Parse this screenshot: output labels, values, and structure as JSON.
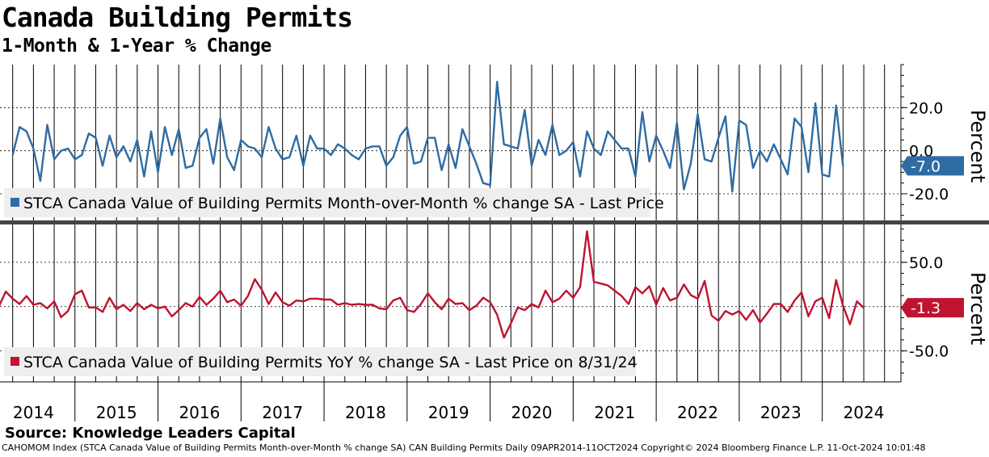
{
  "title": "Canada Building Permits",
  "subtitle": "1-Month & 1-Year % Change",
  "source": "Source: Knowledge Leaders Capital",
  "footer": "CAHOMOM Index (STCA Canada Value of Building Permits Month-over-Month % change SA) CAN Building Permits  Daily 09APR2014-11OCT2024 Copyright© 2024 Bloomberg Finance L.P. 11-Oct-2024 10:01:48",
  "chart_data": [
    {
      "type": "line",
      "name": "mom",
      "legend": "STCA Canada Value of Building Permits Month-over-Month % change SA - Last Price",
      "ylabel": "Percent",
      "ylim": [
        -32,
        40
      ],
      "yticks": [
        20.0,
        0.0,
        -20.0
      ],
      "ytick_labels": [
        "20.0",
        "0.0",
        "-20.0"
      ],
      "last_value_label": "-7.0",
      "color": "#2e6ca4",
      "start_year": 2014.25,
      "step_years": 0.0833333,
      "values": [
        -2.0,
        11.0,
        9.0,
        1.0,
        -14.0,
        12.0,
        -4.0,
        0.0,
        1.0,
        -4.0,
        -2.0,
        8.0,
        6.0,
        -7.0,
        7.0,
        -3.0,
        2.0,
        -5.0,
        5.0,
        -12.0,
        9.0,
        -10.0,
        11.0,
        -2.0,
        10.0,
        -8.0,
        -7.0,
        6.0,
        10.0,
        -6.0,
        15.0,
        -3.0,
        -9.0,
        5.0,
        2.0,
        1.0,
        -3.0,
        11.0,
        1.0,
        -4.0,
        -3.0,
        7.0,
        -7.0,
        7.0,
        1.0,
        1.0,
        -2.0,
        3.0,
        1.0,
        -2.0,
        -4.0,
        1.0,
        2.0,
        2.0,
        -7.0,
        -3.0,
        7.0,
        11.0,
        -6.0,
        -5.0,
        6.0,
        6.0,
        -9.0,
        3.0,
        -8.0,
        10.0,
        2.0,
        -6.0,
        -15.0,
        -16.0,
        32.0,
        3.0,
        2.0,
        1.0,
        19.0,
        -7.0,
        5.0,
        -2.0,
        12.0,
        -2.0,
        0.0,
        4.0,
        -12.0,
        9.0,
        1.0,
        -2.0,
        9.0,
        5.0,
        1.0,
        1.0,
        -12.0,
        18.0,
        -5.0,
        7.0,
        0.0,
        -8.0,
        13.0,
        -18.0,
        -6.0,
        17.0,
        -4.0,
        -5.0,
        6.0,
        16.0,
        -19.0,
        14.0,
        12.0,
        -8.0,
        0.0,
        -5.0,
        3.0,
        -4.0,
        -11.0,
        15.0,
        11.0,
        -10.0,
        22.0,
        -11.0,
        -12.0,
        21.0,
        -7.0
      ]
    },
    {
      "type": "line",
      "name": "yoy",
      "legend": "STCA Canada Value of Building Permits YoY % change SA - Last Price on 8/31/24",
      "ylabel": "Percent",
      "ylim": [
        -85,
        90
      ],
      "yticks": [
        50.0,
        0.0,
        -50.0
      ],
      "ytick_labels": [
        "50.0",
        "0.0",
        "-50.0"
      ],
      "last_value_label": "-1.3",
      "color": "#c0132f",
      "start_year": 2014.0,
      "step_years": 0.0833333,
      "values": [
        -8.0,
        0.0,
        17.0,
        9.0,
        3.0,
        12.0,
        2.0,
        4.0,
        -2.0,
        6.0,
        -12.0,
        -5.0,
        14.0,
        18.0,
        -1.0,
        -1.0,
        -6.0,
        10.0,
        -3.0,
        2.0,
        -5.0,
        4.0,
        -3.0,
        2.0,
        -2.0,
        0.0,
        -11.0,
        -4.0,
        4.0,
        0.0,
        11.0,
        2.0,
        9.0,
        18.0,
        5.0,
        8.0,
        1.0,
        12.0,
        31.0,
        19.0,
        3.0,
        16.0,
        5.0,
        1.0,
        7.0,
        6.0,
        9.0,
        9.0,
        8.0,
        8.0,
        2.0,
        4.0,
        2.0,
        3.0,
        2.0,
        2.0,
        -2.0,
        -3.0,
        7.0,
        10.0,
        -4.0,
        -6.0,
        3.0,
        15.0,
        5.0,
        -3.0,
        9.0,
        3.0,
        4.0,
        -4.0,
        1.0,
        10.0,
        5.0,
        -9.0,
        -35.0,
        -19.0,
        -1.0,
        -4.0,
        3.0,
        -1.0,
        18.0,
        5.0,
        9.0,
        18.0,
        10.0,
        22.0,
        85.0,
        28.0,
        26.0,
        24.0,
        18.0,
        12.0,
        3.0,
        22.0,
        15.0,
        23.0,
        2.0,
        21.0,
        7.0,
        10.0,
        25.0,
        13.0,
        9.0,
        29.0,
        -10.0,
        -16.0,
        -5.0,
        -9.0,
        -5.0,
        -15.0,
        -4.0,
        -18.0,
        -8.0,
        3.0,
        3.0,
        -6.0,
        7.0,
        16.0,
        -11.0,
        6.0,
        10.0,
        -13.0,
        30.0,
        1.0,
        -20.0,
        6.0,
        -1.3
      ]
    }
  ],
  "x_axis": {
    "years": [
      "2014",
      "2015",
      "2016",
      "2017",
      "2018",
      "2019",
      "2020",
      "2021",
      "2022",
      "2023",
      "2024"
    ]
  }
}
